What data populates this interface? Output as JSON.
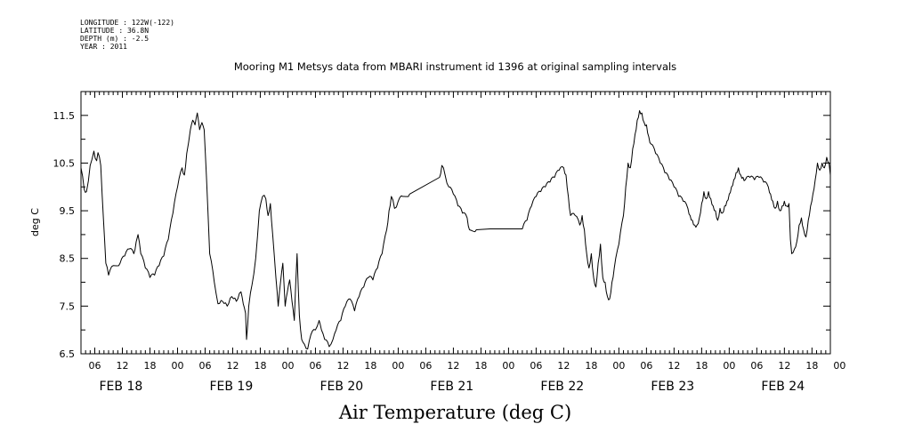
{
  "header": {
    "lines": [
      "LONGITUDE : 122W(-122)",
      "LATITUDE : 36.8N",
      "DEPTH (m) : -2.5",
      "YEAR : 2011"
    ]
  },
  "chart_data": {
    "type": "line",
    "title": "Mooring M1 Metsys data from MBARI instrument id 1396 at original sampling intervals",
    "xlabel": "Air Temperature (deg C)",
    "ylabel": "deg C",
    "ylim": [
      6.5,
      12.0
    ],
    "xlim_hours": [
      0,
      163
    ],
    "yticks": [
      6.5,
      7.5,
      8.5,
      9.5,
      10.5,
      11.5
    ],
    "xtick_labels": [
      "06",
      "12",
      "18",
      "00",
      "06",
      "12",
      "18",
      "00",
      "06",
      "12",
      "18",
      "00",
      "06",
      "12",
      "18",
      "00",
      "06",
      "12",
      "18",
      "00",
      "06",
      "12",
      "18",
      "00",
      "06",
      "12",
      "18",
      "00"
    ],
    "day_labels": [
      "FEB 18",
      "FEB 19",
      "FEB 20",
      "FEB 21",
      "FEB 22",
      "FEB 23",
      "FEB 24"
    ],
    "line_color": "#000000",
    "grid": false,
    "series": [
      {
        "points": [
          [
            0,
            10.4
          ],
          [
            0.7,
            9.95
          ],
          [
            1.2,
            9.9
          ],
          [
            2,
            10.45
          ],
          [
            2.8,
            10.75
          ],
          [
            3.4,
            10.55
          ],
          [
            3.7,
            10.72
          ],
          [
            4.3,
            10.45
          ],
          [
            4.9,
            9.3
          ],
          [
            5.4,
            8.4
          ],
          [
            6,
            8.15
          ],
          [
            7,
            8.35
          ],
          [
            8.5,
            8.4
          ],
          [
            9.5,
            8.55
          ],
          [
            10.5,
            8.7
          ],
          [
            11.5,
            8.6
          ],
          [
            12,
            8.85
          ],
          [
            12.4,
            9.0
          ],
          [
            13,
            8.6
          ],
          [
            14,
            8.3
          ],
          [
            15,
            8.1
          ],
          [
            16,
            8.15
          ],
          [
            17,
            8.35
          ],
          [
            18,
            8.55
          ],
          [
            19,
            8.9
          ],
          [
            20,
            9.45
          ],
          [
            21,
            10.0
          ],
          [
            22,
            10.4
          ],
          [
            22.5,
            10.25
          ],
          [
            23,
            10.7
          ],
          [
            23.8,
            11.2
          ],
          [
            24.3,
            11.4
          ],
          [
            24.8,
            11.3
          ],
          [
            25.3,
            11.55
          ],
          [
            25.8,
            11.2
          ],
          [
            26.3,
            11.35
          ],
          [
            26.8,
            11.2
          ],
          [
            27.3,
            10.2
          ],
          [
            28,
            8.6
          ],
          [
            29,
            8.0
          ],
          [
            29.8,
            7.55
          ],
          [
            30.8,
            7.6
          ],
          [
            31.8,
            7.5
          ],
          [
            32.8,
            7.7
          ],
          [
            33.8,
            7.6
          ],
          [
            34.8,
            7.8
          ],
          [
            35.3,
            7.55
          ],
          [
            35.8,
            7.35
          ],
          [
            36,
            6.8
          ],
          [
            36.5,
            7.5
          ],
          [
            37.2,
            7.95
          ],
          [
            38,
            8.5
          ],
          [
            38.8,
            9.5
          ],
          [
            39.5,
            9.8
          ],
          [
            40.2,
            9.75
          ],
          [
            40.7,
            9.4
          ],
          [
            41.2,
            9.65
          ],
          [
            41.7,
            9.0
          ],
          [
            42.4,
            8.1
          ],
          [
            42.9,
            7.5
          ],
          [
            43.4,
            8.0
          ],
          [
            43.9,
            8.4
          ],
          [
            44.4,
            7.5
          ],
          [
            44.9,
            7.8
          ],
          [
            45.4,
            8.05
          ],
          [
            45.9,
            7.6
          ],
          [
            46.4,
            7.2
          ],
          [
            47,
            8.6
          ],
          [
            47.5,
            7.3
          ],
          [
            48,
            6.8
          ],
          [
            48.6,
            6.7
          ],
          [
            49.3,
            6.6
          ],
          [
            50,
            6.9
          ],
          [
            51,
            7.0
          ],
          [
            51.8,
            7.2
          ],
          [
            52.3,
            7.0
          ],
          [
            53,
            6.8
          ],
          [
            54,
            6.65
          ],
          [
            54.8,
            6.8
          ],
          [
            55.5,
            7.0
          ],
          [
            56.5,
            7.2
          ],
          [
            57.5,
            7.5
          ],
          [
            58.5,
            7.65
          ],
          [
            59.5,
            7.4
          ],
          [
            60.5,
            7.7
          ],
          [
            61.5,
            7.9
          ],
          [
            62.5,
            8.1
          ],
          [
            63.5,
            8.05
          ],
          [
            64.5,
            8.3
          ],
          [
            65.5,
            8.6
          ],
          [
            66.5,
            9.1
          ],
          [
            67,
            9.5
          ],
          [
            67.5,
            9.8
          ],
          [
            68.2,
            9.55
          ],
          [
            69,
            9.7
          ],
          [
            70,
            9.8
          ],
          [
            71.5,
            9.85
          ],
          [
            78,
            10.2
          ],
          [
            78.5,
            10.45
          ],
          [
            79.2,
            10.25
          ],
          [
            80,
            10.0
          ],
          [
            81,
            9.85
          ],
          [
            82,
            9.6
          ],
          [
            83,
            9.45
          ],
          [
            84,
            9.35
          ],
          [
            84.5,
            9.1
          ],
          [
            86,
            9.1
          ],
          [
            89,
            9.12
          ],
          [
            92,
            9.12
          ],
          [
            96,
            9.12
          ],
          [
            97,
            9.3
          ],
          [
            98,
            9.6
          ],
          [
            99,
            9.8
          ],
          [
            100,
            9.9
          ],
          [
            101,
            10.0
          ],
          [
            102,
            10.1
          ],
          [
            103,
            10.2
          ],
          [
            104,
            10.35
          ],
          [
            105,
            10.4
          ],
          [
            105.5,
            10.25
          ],
          [
            106,
            9.8
          ],
          [
            106.5,
            9.4
          ],
          [
            107.5,
            9.4
          ],
          [
            108.5,
            9.2
          ],
          [
            109,
            9.4
          ],
          [
            109.5,
            9.1
          ],
          [
            110,
            8.6
          ],
          [
            110.5,
            8.3
          ],
          [
            111,
            8.6
          ],
          [
            111.5,
            8.1
          ],
          [
            112,
            7.9
          ],
          [
            112.5,
            8.4
          ],
          [
            113,
            8.8
          ],
          [
            113.5,
            8.1
          ],
          [
            114,
            8.0
          ],
          [
            114.5,
            7.7
          ],
          [
            115,
            7.65
          ],
          [
            115.5,
            8.0
          ],
          [
            116,
            8.3
          ],
          [
            117,
            8.8
          ],
          [
            118,
            9.4
          ],
          [
            118.5,
            10.0
          ],
          [
            119,
            10.5
          ],
          [
            119.5,
            10.4
          ],
          [
            120,
            10.8
          ],
          [
            120.5,
            11.1
          ],
          [
            121,
            11.4
          ],
          [
            121.5,
            11.6
          ],
          [
            122,
            11.55
          ],
          [
            122.5,
            11.35
          ],
          [
            123,
            11.3
          ],
          [
            123.5,
            11.05
          ],
          [
            124,
            10.9
          ],
          [
            125,
            10.7
          ],
          [
            126,
            10.5
          ],
          [
            127,
            10.3
          ],
          [
            128,
            10.15
          ],
          [
            129,
            10.0
          ],
          [
            130,
            9.8
          ],
          [
            131,
            9.7
          ],
          [
            132,
            9.55
          ],
          [
            132.5,
            9.4
          ],
          [
            133,
            9.3
          ],
          [
            133.5,
            9.2
          ],
          [
            134,
            9.2
          ],
          [
            134.5,
            9.35
          ],
          [
            135,
            9.65
          ],
          [
            135.5,
            9.9
          ],
          [
            136,
            9.75
          ],
          [
            136.5,
            9.9
          ],
          [
            137,
            9.75
          ],
          [
            137.5,
            9.6
          ],
          [
            138,
            9.5
          ],
          [
            138.5,
            9.3
          ],
          [
            139,
            9.55
          ],
          [
            139.5,
            9.45
          ],
          [
            140,
            9.6
          ],
          [
            140.5,
            9.7
          ],
          [
            141,
            9.85
          ],
          [
            141.5,
            10.0
          ],
          [
            142,
            10.15
          ],
          [
            142.5,
            10.3
          ],
          [
            143,
            10.4
          ],
          [
            143.5,
            10.25
          ],
          [
            144,
            10.2
          ],
          [
            144.5,
            10.15
          ],
          [
            145.5,
            10.2
          ],
          [
            146.5,
            10.15
          ],
          [
            147.5,
            10.2
          ],
          [
            148.5,
            10.1
          ],
          [
            149.5,
            10.0
          ],
          [
            150,
            9.85
          ],
          [
            150.5,
            9.7
          ],
          [
            151,
            9.55
          ],
          [
            151.5,
            9.7
          ],
          [
            152,
            9.5
          ],
          [
            152.5,
            9.6
          ],
          [
            153,
            9.7
          ],
          [
            153.5,
            9.6
          ],
          [
            154,
            9.65
          ],
          [
            154.3,
            8.9
          ],
          [
            154.6,
            8.6
          ],
          [
            155.2,
            8.7
          ],
          [
            155.7,
            8.85
          ],
          [
            156.2,
            9.2
          ],
          [
            156.7,
            9.35
          ],
          [
            157.2,
            9.1
          ],
          [
            157.7,
            8.95
          ],
          [
            158.2,
            9.3
          ],
          [
            158.7,
            9.6
          ],
          [
            159.2,
            9.85
          ],
          [
            159.7,
            10.15
          ],
          [
            160.2,
            10.5
          ],
          [
            160.7,
            10.35
          ],
          [
            161.2,
            10.5
          ],
          [
            161.7,
            10.4
          ],
          [
            162.2,
            10.62
          ],
          [
            162.7,
            10.5
          ],
          [
            163,
            10.25
          ]
        ]
      }
    ]
  }
}
